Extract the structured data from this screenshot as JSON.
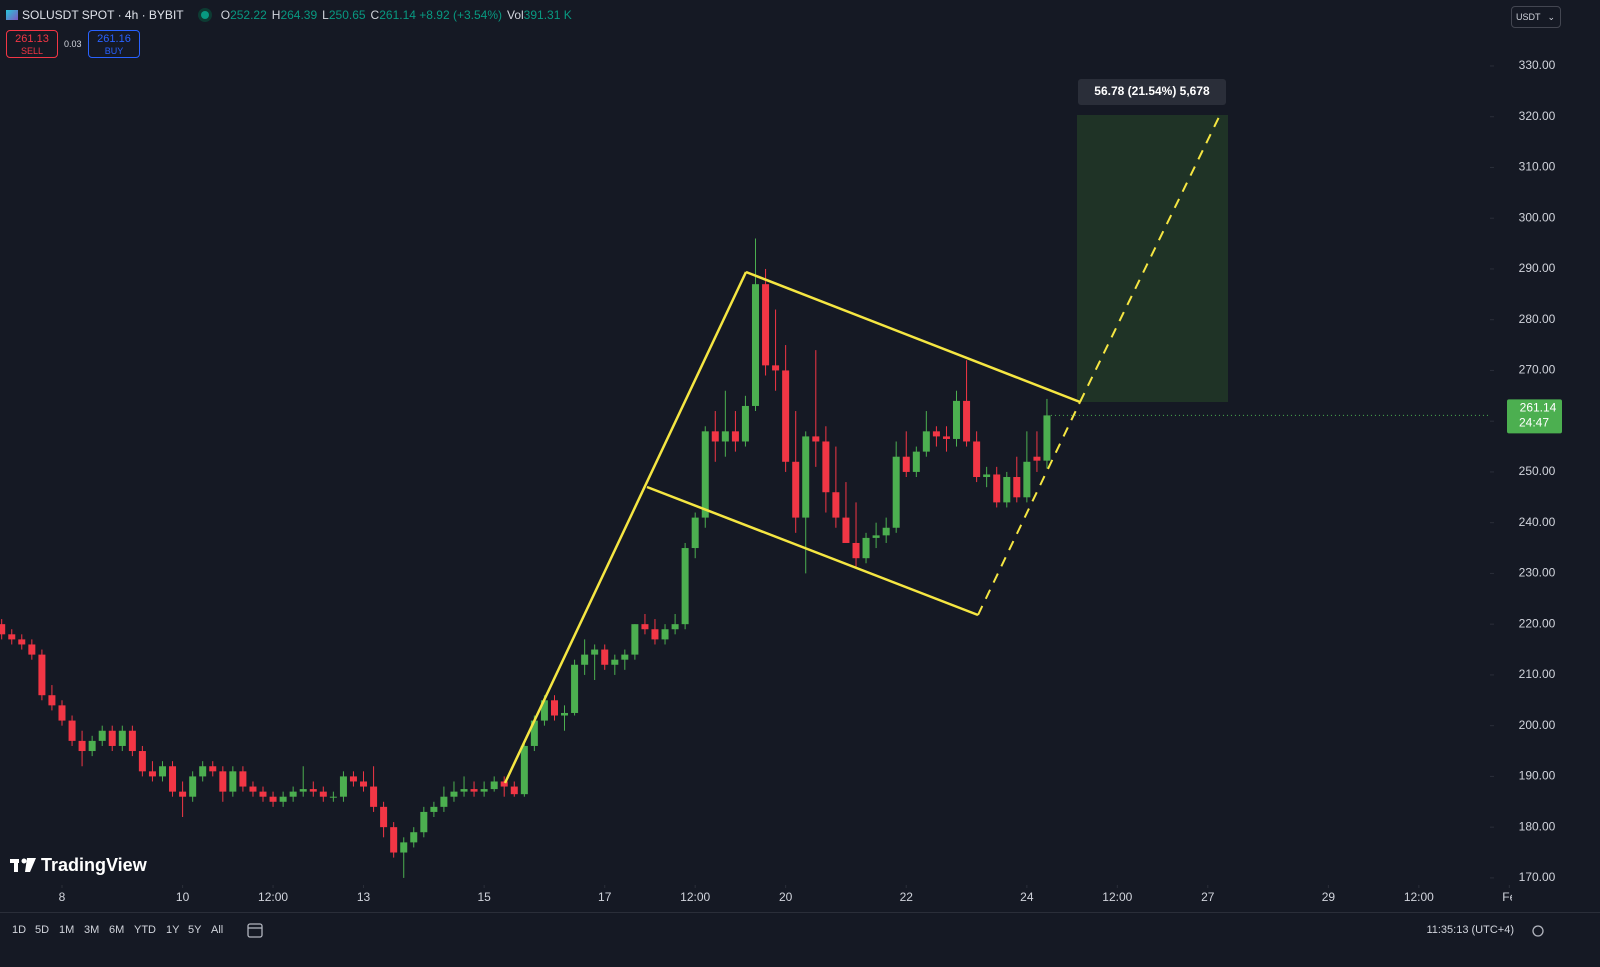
{
  "chart_data": {
    "type": "candlestick",
    "header": {
      "symbol": "SOLUSDT SPOT · 4h · BYBIT",
      "legend": [
        {
          "label": "O",
          "value": "252.22"
        },
        {
          "label": "H",
          "value": "264.39"
        },
        {
          "label": "L",
          "value": "250.65"
        },
        {
          "label": "C",
          "value": "261.14 +8.92 (+3.54%)"
        },
        {
          "label": "Vol",
          "value": "391.31 K"
        }
      ],
      "sell": {
        "price": "261.13",
        "label": "SELL"
      },
      "spread": "0.03",
      "buy": {
        "price": "261.16",
        "label": "BUY"
      },
      "currency": "USDT"
    },
    "x": [
      7,
      7.167,
      7.333,
      7.5,
      7.667,
      7.833,
      8,
      8.167,
      8.333,
      8.5,
      8.667,
      8.833,
      9,
      9.167,
      9.333,
      9.5,
      9.667,
      9.833,
      10,
      10.167,
      10.333,
      10.5,
      10.667,
      10.833,
      11,
      11.167,
      11.333,
      11.5,
      11.667,
      11.833,
      12,
      12.167,
      12.333,
      12.5,
      12.667,
      12.833,
      13,
      13.167,
      13.333,
      13.5,
      13.667,
      13.833,
      14,
      14.167,
      14.333,
      14.5,
      14.667,
      14.833,
      15,
      15.167,
      15.333,
      15.5,
      15.667,
      15.833,
      16,
      16.167,
      16.333,
      16.5,
      16.667,
      16.833,
      17,
      17.167,
      17.333,
      17.5,
      17.667,
      17.833,
      18,
      18.167,
      18.333,
      18.5,
      18.667,
      18.833,
      19,
      19.167,
      19.333,
      19.5,
      19.667,
      19.833,
      20,
      20.167,
      20.333,
      20.5,
      20.667,
      20.833,
      21,
      21.167,
      21.333,
      21.5,
      21.667,
      21.833,
      22,
      22.167,
      22.333,
      22.5,
      22.667,
      22.833,
      23,
      23.167,
      23.333,
      23.5,
      23.667,
      23.833,
      24,
      24.167,
      24.333
    ],
    "open": [
      220,
      218,
      217,
      216,
      214,
      206,
      204,
      201,
      197,
      195,
      197,
      199,
      196,
      199,
      195,
      191,
      190,
      192,
      187,
      186,
      190,
      192,
      191,
      187,
      191,
      188,
      187,
      186,
      185,
      186,
      187,
      187.5,
      187,
      186,
      186,
      190,
      189,
      188,
      184,
      180,
      175,
      177,
      179,
      183,
      184,
      186,
      187,
      187.5,
      187,
      187.5,
      189,
      188,
      186.5,
      196,
      201,
      205,
      202,
      202.5,
      212,
      214,
      215,
      212,
      213,
      214,
      220,
      219,
      217,
      219,
      220,
      235,
      241,
      258,
      256,
      258,
      256,
      263,
      287,
      271,
      270,
      252,
      241,
      257,
      256,
      246,
      241,
      236,
      233,
      237,
      237.5,
      239,
      253,
      250,
      254,
      258,
      257,
      256.5,
      264,
      256,
      249,
      249.5,
      244,
      249,
      245,
      253,
      252.22
    ],
    "high": [
      221,
      219,
      218,
      217,
      215,
      208,
      205,
      202,
      199,
      198,
      200,
      200,
      200,
      200,
      196,
      193,
      193,
      193,
      189,
      191,
      193,
      193,
      192,
      192,
      192,
      189,
      188,
      187,
      187,
      188,
      192,
      189,
      188,
      187,
      191,
      191,
      191,
      192,
      185,
      181,
      178,
      180,
      184,
      185,
      188,
      189,
      190,
      189,
      189,
      190,
      190,
      189,
      197,
      202,
      206,
      206,
      204,
      213,
      217,
      216,
      216,
      214,
      215,
      220,
      222,
      221,
      220,
      222,
      236,
      242,
      259,
      262,
      266,
      262,
      265,
      296,
      290,
      282,
      275,
      262,
      258,
      274,
      259,
      255,
      248,
      244,
      238,
      240,
      241,
      256,
      258,
      255,
      262,
      259,
      259,
      266,
      272,
      258,
      251,
      251,
      250,
      253,
      258,
      258,
      264.39
    ],
    "low": [
      217,
      216,
      215,
      213,
      205,
      203,
      200,
      196,
      192,
      194,
      196,
      195,
      195,
      194,
      190,
      189,
      189,
      186,
      182,
      185,
      189,
      190,
      185,
      186,
      187,
      186,
      185,
      184,
      184,
      185,
      186,
      186,
      185,
      185,
      185,
      188,
      187,
      183,
      178,
      174,
      170,
      176,
      178,
      182,
      183,
      185,
      186,
      186,
      186,
      187,
      186,
      186,
      186,
      195,
      200,
      201,
      199,
      202,
      210,
      209,
      211,
      210,
      211,
      213,
      218,
      216,
      216,
      218,
      219,
      233,
      239,
      252,
      253,
      254,
      255,
      262,
      269,
      266,
      250,
      238,
      230,
      251,
      242,
      239,
      236,
      231,
      232,
      235,
      236,
      238,
      249,
      249,
      253,
      255,
      254,
      255,
      255,
      248,
      247,
      243,
      243,
      244,
      244,
      250,
      250.65
    ],
    "close": [
      218,
      217,
      216,
      214,
      206,
      204,
      201,
      197,
      195,
      197,
      199,
      196,
      199,
      195,
      191,
      190,
      192,
      187,
      186,
      190,
      192,
      191,
      187,
      191,
      188,
      187,
      186,
      185,
      186,
      187,
      187.5,
      187,
      186,
      186,
      190,
      189,
      188,
      184,
      180,
      175,
      177,
      179,
      183,
      184,
      186,
      187,
      187.5,
      187,
      187.5,
      189,
      188,
      186.5,
      196,
      201,
      205,
      202,
      202.5,
      212,
      214,
      215,
      212,
      213,
      214,
      220,
      219,
      217,
      219,
      220,
      235,
      241,
      258,
      256,
      258,
      256,
      263,
      287,
      271,
      270,
      252,
      241,
      257,
      256,
      246,
      241,
      236,
      233,
      237,
      237.5,
      239,
      253,
      250,
      254,
      258,
      257,
      256.5,
      264,
      256,
      249,
      249.5,
      244,
      249,
      245,
      252,
      252.22,
      261.14
    ],
    "up_color": "#4caf50",
    "down_color": "#f23645",
    "xlim": [
      6.972,
      31.68
    ],
    "xticks": [
      {
        "value": 8,
        "label": "8"
      },
      {
        "value": 10,
        "label": "10"
      },
      {
        "value": 11.5,
        "label": "12:00"
      },
      {
        "value": 13,
        "label": "13"
      },
      {
        "value": 15,
        "label": "15"
      },
      {
        "value": 17,
        "label": "17"
      },
      {
        "value": 18.5,
        "label": "12:00"
      },
      {
        "value": 20,
        "label": "20"
      },
      {
        "value": 22,
        "label": "22"
      },
      {
        "value": 24,
        "label": "24"
      },
      {
        "value": 25.5,
        "label": "12:00"
      },
      {
        "value": 27,
        "label": "27"
      },
      {
        "value": 29,
        "label": "29"
      },
      {
        "value": 30.5,
        "label": "12:00"
      },
      {
        "value": 32,
        "label": "Fe"
      }
    ],
    "ylim": [
      168.6,
      343
    ],
    "yticks": [
      {
        "value": 170,
        "label": "170.00"
      },
      {
        "value": 180,
        "label": "180.00"
      },
      {
        "value": 190,
        "label": "190.00"
      },
      {
        "value": 200,
        "label": "200.00"
      },
      {
        "value": 210,
        "label": "210.00"
      },
      {
        "value": 220,
        "label": "220.00"
      },
      {
        "value": 230,
        "label": "230.00"
      },
      {
        "value": 240,
        "label": "240.00"
      },
      {
        "value": 250,
        "label": "250.00"
      },
      {
        "value": 260,
        "label": "260.00"
      },
      {
        "value": 270,
        "label": "270.00"
      },
      {
        "value": 280,
        "label": "280.00"
      },
      {
        "value": 290,
        "label": "290.00"
      },
      {
        "value": 300,
        "label": "300.00"
      },
      {
        "value": 310,
        "label": "310.00"
      },
      {
        "value": 320,
        "label": "320.00"
      },
      {
        "value": 330,
        "label": "330.00"
      }
    ],
    "grid": false,
    "last_price": {
      "label": "261.14",
      "countdown": "24:47"
    },
    "measure_label": "56.78 (21.54%) 5,678",
    "watermark": "TradingView",
    "toolbar": {
      "ranges": [
        "1D",
        "5D",
        "1M",
        "3M",
        "6M",
        "YTD",
        "1Y",
        "5Y",
        "All"
      ],
      "clock": "11:35:13 (UTC+4)"
    }
  }
}
